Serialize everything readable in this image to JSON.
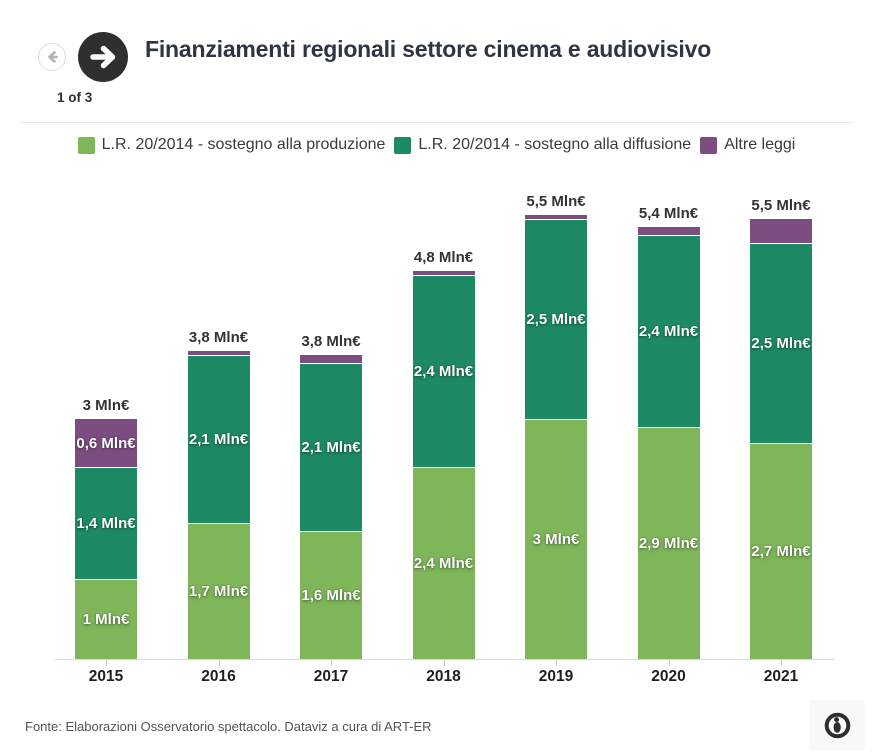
{
  "header": {
    "title": "Finanziamenti regionali settore cinema e audiovisivo",
    "pagination": "1 of 3",
    "prev_icon": "arrow-left-icon",
    "next_icon": "arrow-right-icon"
  },
  "colors": {
    "produzione_green": "#7fb65a",
    "diffusione_green": "#1d8a63",
    "altre_purple": "#7c4d80",
    "title_text": "#2d3642",
    "axis_line": "#dcdcdc",
    "next_button_bg": "#2f2f2f"
  },
  "chart_data": {
    "type": "bar",
    "stacked": true,
    "title": "Finanziamenti regionali settore cinema e audiovisivo",
    "unit": "Mln€",
    "categories": [
      "2015",
      "2016",
      "2017",
      "2018",
      "2019",
      "2020",
      "2021"
    ],
    "series": [
      {
        "name": "L.R. 20/2014 - sostegno alla produzione",
        "color": "#7fb65a",
        "values": [
          1,
          1.7,
          1.6,
          2.4,
          3,
          2.9,
          2.7
        ],
        "labels": [
          "1 Mln€",
          "1,7 Mln€",
          "1,6 Mln€",
          "2,4 Mln€",
          "3 Mln€",
          "2,9 Mln€",
          "2,7 Mln€"
        ]
      },
      {
        "name": "L.R. 20/2014 - sostegno alla diffusione",
        "color": "#1d8a63",
        "values": [
          1.4,
          2.1,
          2.1,
          2.4,
          2.5,
          2.4,
          2.5
        ],
        "labels": [
          "1,4 Mln€",
          "2,1 Mln€",
          "2,1 Mln€",
          "2,4 Mln€",
          "2,5 Mln€",
          "2,4 Mln€",
          "2,5 Mln€"
        ]
      },
      {
        "name": "Altre leggi",
        "color": "#7c4d80",
        "values": [
          0.6,
          0.05,
          0.1,
          0.05,
          0.05,
          0.1,
          0.3
        ],
        "labels": [
          "0,6 Mln€",
          "",
          "",
          "",
          "",
          "",
          ""
        ]
      }
    ],
    "totals": [
      "3 Mln€",
      "3,8 Mln€",
      "3,8 Mln€",
      "4,8 Mln€",
      "5,5 Mln€",
      "5,4 Mln€",
      "5,5 Mln€"
    ],
    "ylim": [
      0,
      6.1
    ],
    "grid": false,
    "legend_position": "top"
  },
  "footer": {
    "source": "Fonte: Elaborazioni Osservatorio spettacolo. Dataviz a cura di ART-ER",
    "logo": "osservatorio-logo"
  }
}
